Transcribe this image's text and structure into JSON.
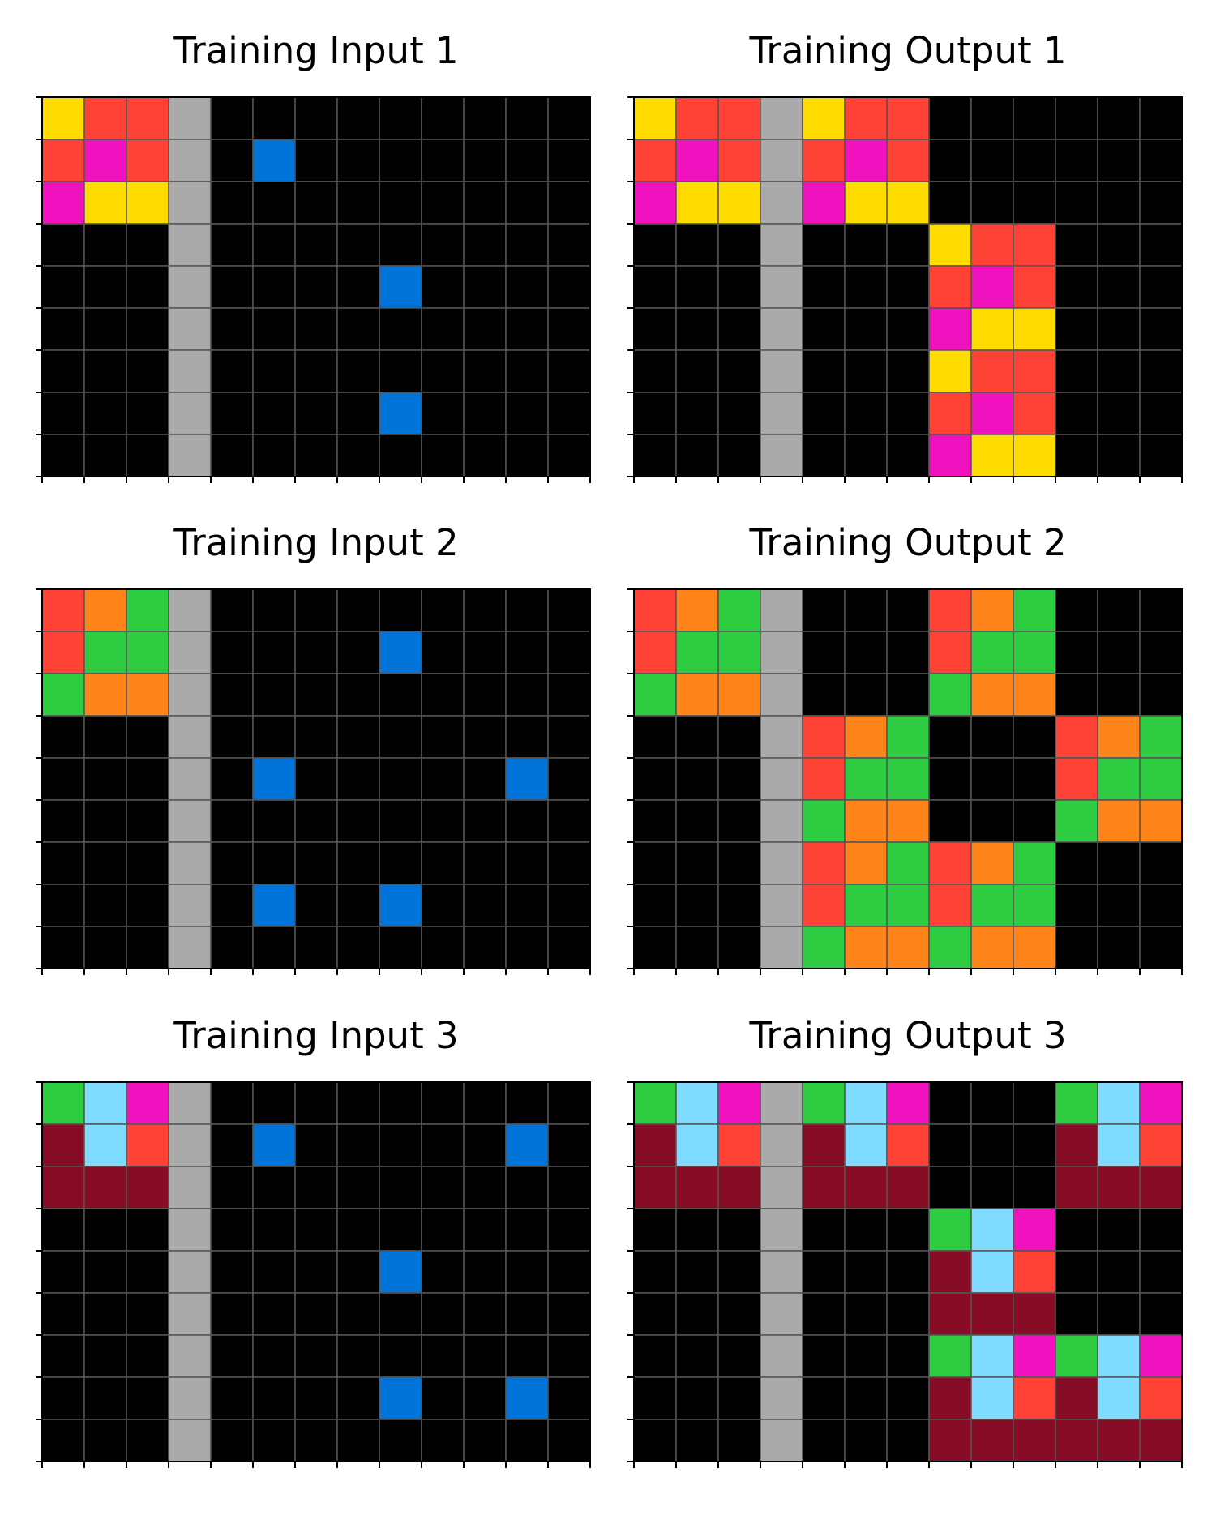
{
  "palette": {
    "0": "#000000",
    "1": "#0074D9",
    "2": "#FF4136",
    "3": "#2ECC40",
    "4": "#FFDC00",
    "5": "#AAAAAA",
    "6": "#F012BE",
    "7": "#FF851B",
    "8": "#7FDBFF",
    "9": "#870C25"
  },
  "grid_line_color": "#555555",
  "panels": [
    {
      "title": "Training Input 1",
      "grid": [
        [
          4,
          2,
          2,
          5,
          0,
          0,
          0,
          0,
          0,
          0,
          0,
          0,
          0
        ],
        [
          2,
          6,
          2,
          5,
          0,
          1,
          0,
          0,
          0,
          0,
          0,
          0,
          0
        ],
        [
          6,
          4,
          4,
          5,
          0,
          0,
          0,
          0,
          0,
          0,
          0,
          0,
          0
        ],
        [
          0,
          0,
          0,
          5,
          0,
          0,
          0,
          0,
          0,
          0,
          0,
          0,
          0
        ],
        [
          0,
          0,
          0,
          5,
          0,
          0,
          0,
          0,
          1,
          0,
          0,
          0,
          0
        ],
        [
          0,
          0,
          0,
          5,
          0,
          0,
          0,
          0,
          0,
          0,
          0,
          0,
          0
        ],
        [
          0,
          0,
          0,
          5,
          0,
          0,
          0,
          0,
          0,
          0,
          0,
          0,
          0
        ],
        [
          0,
          0,
          0,
          5,
          0,
          0,
          0,
          0,
          1,
          0,
          0,
          0,
          0
        ],
        [
          0,
          0,
          0,
          5,
          0,
          0,
          0,
          0,
          0,
          0,
          0,
          0,
          0
        ]
      ]
    },
    {
      "title": "Training Output 1",
      "grid": [
        [
          4,
          2,
          2,
          5,
          4,
          2,
          2,
          0,
          0,
          0,
          0,
          0,
          0
        ],
        [
          2,
          6,
          2,
          5,
          2,
          6,
          2,
          0,
          0,
          0,
          0,
          0,
          0
        ],
        [
          6,
          4,
          4,
          5,
          6,
          4,
          4,
          0,
          0,
          0,
          0,
          0,
          0
        ],
        [
          0,
          0,
          0,
          5,
          0,
          0,
          0,
          4,
          2,
          2,
          0,
          0,
          0
        ],
        [
          0,
          0,
          0,
          5,
          0,
          0,
          0,
          2,
          6,
          2,
          0,
          0,
          0
        ],
        [
          0,
          0,
          0,
          5,
          0,
          0,
          0,
          6,
          4,
          4,
          0,
          0,
          0
        ],
        [
          0,
          0,
          0,
          5,
          0,
          0,
          0,
          4,
          2,
          2,
          0,
          0,
          0
        ],
        [
          0,
          0,
          0,
          5,
          0,
          0,
          0,
          2,
          6,
          2,
          0,
          0,
          0
        ],
        [
          0,
          0,
          0,
          5,
          0,
          0,
          0,
          6,
          4,
          4,
          0,
          0,
          0
        ]
      ]
    },
    {
      "title": "Training Input 2",
      "grid": [
        [
          2,
          7,
          3,
          5,
          0,
          0,
          0,
          0,
          0,
          0,
          0,
          0,
          0
        ],
        [
          2,
          3,
          3,
          5,
          0,
          0,
          0,
          0,
          1,
          0,
          0,
          0,
          0
        ],
        [
          3,
          7,
          7,
          5,
          0,
          0,
          0,
          0,
          0,
          0,
          0,
          0,
          0
        ],
        [
          0,
          0,
          0,
          5,
          0,
          0,
          0,
          0,
          0,
          0,
          0,
          0,
          0
        ],
        [
          0,
          0,
          0,
          5,
          0,
          1,
          0,
          0,
          0,
          0,
          0,
          1,
          0
        ],
        [
          0,
          0,
          0,
          5,
          0,
          0,
          0,
          0,
          0,
          0,
          0,
          0,
          0
        ],
        [
          0,
          0,
          0,
          5,
          0,
          0,
          0,
          0,
          0,
          0,
          0,
          0,
          0
        ],
        [
          0,
          0,
          0,
          5,
          0,
          1,
          0,
          0,
          1,
          0,
          0,
          0,
          0
        ],
        [
          0,
          0,
          0,
          5,
          0,
          0,
          0,
          0,
          0,
          0,
          0,
          0,
          0
        ]
      ]
    },
    {
      "title": "Training Output 2",
      "grid": [
        [
          2,
          7,
          3,
          5,
          0,
          0,
          0,
          2,
          7,
          3,
          0,
          0,
          0
        ],
        [
          2,
          3,
          3,
          5,
          0,
          0,
          0,
          2,
          3,
          3,
          0,
          0,
          0
        ],
        [
          3,
          7,
          7,
          5,
          0,
          0,
          0,
          3,
          7,
          7,
          0,
          0,
          0
        ],
        [
          0,
          0,
          0,
          5,
          2,
          7,
          3,
          0,
          0,
          0,
          2,
          7,
          3
        ],
        [
          0,
          0,
          0,
          5,
          2,
          3,
          3,
          0,
          0,
          0,
          2,
          3,
          3
        ],
        [
          0,
          0,
          0,
          5,
          3,
          7,
          7,
          0,
          0,
          0,
          3,
          7,
          7
        ],
        [
          0,
          0,
          0,
          5,
          2,
          7,
          3,
          2,
          7,
          3,
          0,
          0,
          0
        ],
        [
          0,
          0,
          0,
          5,
          2,
          3,
          3,
          2,
          3,
          3,
          0,
          0,
          0
        ],
        [
          0,
          0,
          0,
          5,
          3,
          7,
          7,
          3,
          7,
          7,
          0,
          0,
          0
        ]
      ]
    },
    {
      "title": "Training Input 3",
      "grid": [
        [
          3,
          8,
          6,
          5,
          0,
          0,
          0,
          0,
          0,
          0,
          0,
          0,
          0
        ],
        [
          9,
          8,
          2,
          5,
          0,
          1,
          0,
          0,
          0,
          0,
          0,
          1,
          0
        ],
        [
          9,
          9,
          9,
          5,
          0,
          0,
          0,
          0,
          0,
          0,
          0,
          0,
          0
        ],
        [
          0,
          0,
          0,
          5,
          0,
          0,
          0,
          0,
          0,
          0,
          0,
          0,
          0
        ],
        [
          0,
          0,
          0,
          5,
          0,
          0,
          0,
          0,
          1,
          0,
          0,
          0,
          0
        ],
        [
          0,
          0,
          0,
          5,
          0,
          0,
          0,
          0,
          0,
          0,
          0,
          0,
          0
        ],
        [
          0,
          0,
          0,
          5,
          0,
          0,
          0,
          0,
          0,
          0,
          0,
          0,
          0
        ],
        [
          0,
          0,
          0,
          5,
          0,
          0,
          0,
          0,
          1,
          0,
          0,
          1,
          0
        ],
        [
          0,
          0,
          0,
          5,
          0,
          0,
          0,
          0,
          0,
          0,
          0,
          0,
          0
        ]
      ]
    },
    {
      "title": "Training Output 3",
      "grid": [
        [
          3,
          8,
          6,
          5,
          3,
          8,
          6,
          0,
          0,
          0,
          3,
          8,
          6
        ],
        [
          9,
          8,
          2,
          5,
          9,
          8,
          2,
          0,
          0,
          0,
          9,
          8,
          2
        ],
        [
          9,
          9,
          9,
          5,
          9,
          9,
          9,
          0,
          0,
          0,
          9,
          9,
          9
        ],
        [
          0,
          0,
          0,
          5,
          0,
          0,
          0,
          3,
          8,
          6,
          0,
          0,
          0
        ],
        [
          0,
          0,
          0,
          5,
          0,
          0,
          0,
          9,
          8,
          2,
          0,
          0,
          0
        ],
        [
          0,
          0,
          0,
          5,
          0,
          0,
          0,
          9,
          9,
          9,
          0,
          0,
          0
        ],
        [
          0,
          0,
          0,
          5,
          0,
          0,
          0,
          3,
          8,
          6,
          3,
          8,
          6
        ],
        [
          0,
          0,
          0,
          5,
          0,
          0,
          0,
          9,
          8,
          2,
          9,
          8,
          2
        ],
        [
          0,
          0,
          0,
          5,
          0,
          0,
          0,
          9,
          9,
          9,
          9,
          9,
          9
        ]
      ]
    }
  ]
}
